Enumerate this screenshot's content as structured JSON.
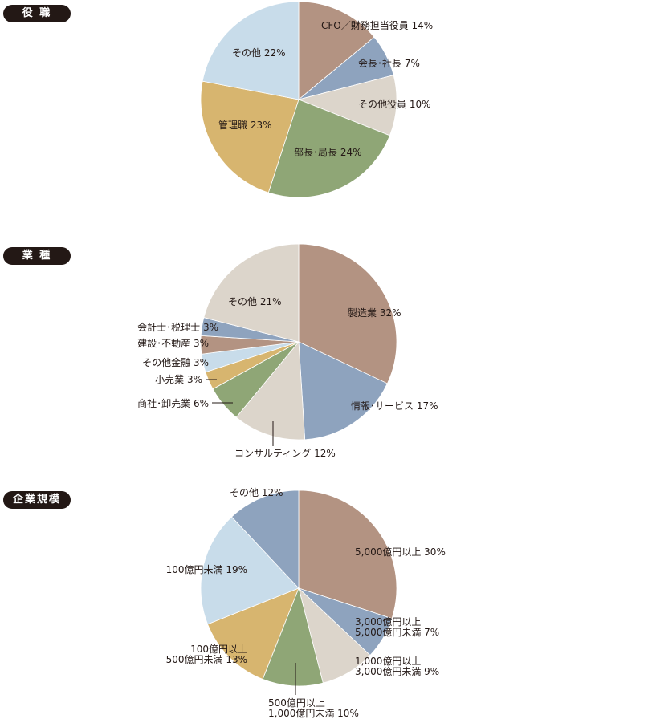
{
  "sections": [
    {
      "title": "役 職"
    },
    {
      "title": "業 種"
    },
    {
      "title": "企業規模"
    }
  ],
  "chart_data": [
    {
      "type": "pie",
      "title": "役 職",
      "slices": [
        {
          "label": "CFO／財務担当役員 14%",
          "value": 14,
          "color": "#b39382"
        },
        {
          "label": "会長･社長 7%",
          "value": 7,
          "color": "#8ea3be"
        },
        {
          "label": "その他役員 10%",
          "value": 10,
          "color": "#dcd5cb"
        },
        {
          "label": "部長･局長 24%",
          "value": 24,
          "color": "#8fa676"
        },
        {
          "label": "管理職 23%",
          "value": 23,
          "color": "#d7b56f"
        },
        {
          "label": "その他 22%",
          "value": 22,
          "color": "#c8dcea"
        }
      ]
    },
    {
      "type": "pie",
      "title": "業 種",
      "slices": [
        {
          "label": "製造業 32%",
          "value": 32,
          "color": "#b39382"
        },
        {
          "label": "情報･サービス 17%",
          "value": 17,
          "color": "#8ea3be"
        },
        {
          "label": "コンサルティング 12%",
          "value": 12,
          "color": "#dcd5cb"
        },
        {
          "label": "商社･卸売業 6%",
          "value": 6,
          "color": "#8fa676"
        },
        {
          "label": "小売業 3%",
          "value": 3,
          "color": "#d7b56f"
        },
        {
          "label": "その他金融 3%",
          "value": 3,
          "color": "#c8dcea"
        },
        {
          "label": "建設･不動産 3%",
          "value": 3,
          "color": "#b39382"
        },
        {
          "label": "会計士･税理士 3%",
          "value": 3,
          "color": "#8ea3be"
        },
        {
          "label": "その他 21%",
          "value": 21,
          "color": "#dcd5cb"
        }
      ]
    },
    {
      "type": "pie",
      "title": "企業規模",
      "slices": [
        {
          "label": "5,000億円以上 30%",
          "value": 30,
          "color": "#b39382"
        },
        {
          "label": "3,000億円以上\n5,000億円未満 7%",
          "value": 7,
          "color": "#8ea3be"
        },
        {
          "label": "1,000億円以上\n3,000億円未満 9%",
          "value": 9,
          "color": "#dcd5cb"
        },
        {
          "label": "500億円以上\n1,000億円未満 10%",
          "value": 10,
          "color": "#8fa676"
        },
        {
          "label": "100億円以上\n500億円未満 13%",
          "value": 13,
          "color": "#d7b56f"
        },
        {
          "label": "100億円未満 19%",
          "value": 19,
          "color": "#c8dcea"
        },
        {
          "label": "その他 12%",
          "value": 12,
          "color": "#8ea3be"
        }
      ]
    }
  ]
}
